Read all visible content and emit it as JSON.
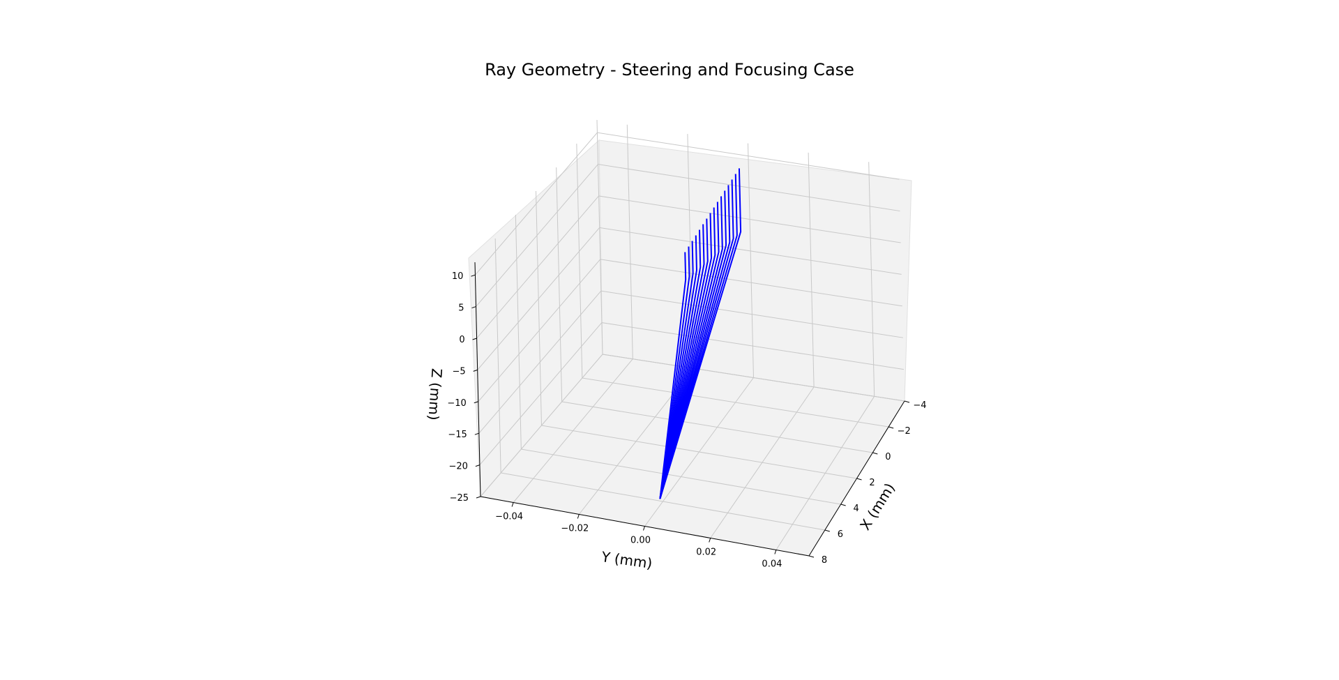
{
  "chart_data": {
    "type": "line",
    "projection": "3d",
    "title": "Ray Geometry - Steering and Focusing Case",
    "xlabel": "X (mm)",
    "ylabel": "Y (mm)",
    "zlabel": "Z (mm)",
    "xlim": [
      -4,
      8
    ],
    "ylim": [
      -0.05,
      0.05
    ],
    "zlim": [
      -25,
      12
    ],
    "x_ticks": [
      "−4",
      "−2",
      "0",
      "2",
      "4",
      "6",
      "8"
    ],
    "y_ticks": [
      "−0.04",
      "−0.02",
      "0.00",
      "0.02",
      "0.04"
    ],
    "z_ticks": [
      "−25",
      "−20",
      "−15",
      "−10",
      "−5",
      "0",
      "5",
      "10"
    ],
    "grid": true,
    "series_color": "#0000ff",
    "pane_color": "#f2f2f2",
    "grid_color": "#c8c8c8",
    "focus_point": {
      "x": 6.3,
      "y": 0.0,
      "z": -24.0
    },
    "rays": [
      {
        "x": -3.0,
        "z_top": 10.0,
        "z_knee": 0.0
      },
      {
        "x": -2.6,
        "z_top": 9.9,
        "z_knee": 0.2
      },
      {
        "x": -2.2,
        "z_top": 9.8,
        "z_knee": 0.5
      },
      {
        "x": -1.8,
        "z_top": 9.7,
        "z_knee": 0.7
      },
      {
        "x": -1.4,
        "z_top": 9.6,
        "z_knee": 1.0
      },
      {
        "x": -1.0,
        "z_top": 9.5,
        "z_knee": 1.2
      },
      {
        "x": -0.6,
        "z_top": 9.4,
        "z_knee": 1.5
      },
      {
        "x": -0.2,
        "z_top": 9.3,
        "z_knee": 1.8
      },
      {
        "x": 0.2,
        "z_top": 9.2,
        "z_knee": 2.1
      },
      {
        "x": 0.6,
        "z_top": 9.1,
        "z_knee": 2.4
      },
      {
        "x": 1.0,
        "z_top": 9.0,
        "z_knee": 2.7
      },
      {
        "x": 1.4,
        "z_top": 8.9,
        "z_knee": 3.0
      },
      {
        "x": 1.8,
        "z_top": 8.8,
        "z_knee": 3.3
      },
      {
        "x": 2.2,
        "z_top": 8.7,
        "z_knee": 3.6
      },
      {
        "x": 2.6,
        "z_top": 8.6,
        "z_knee": 3.9
      },
      {
        "x": 3.0,
        "z_top": 8.5,
        "z_knee": 4.2
      }
    ]
  }
}
